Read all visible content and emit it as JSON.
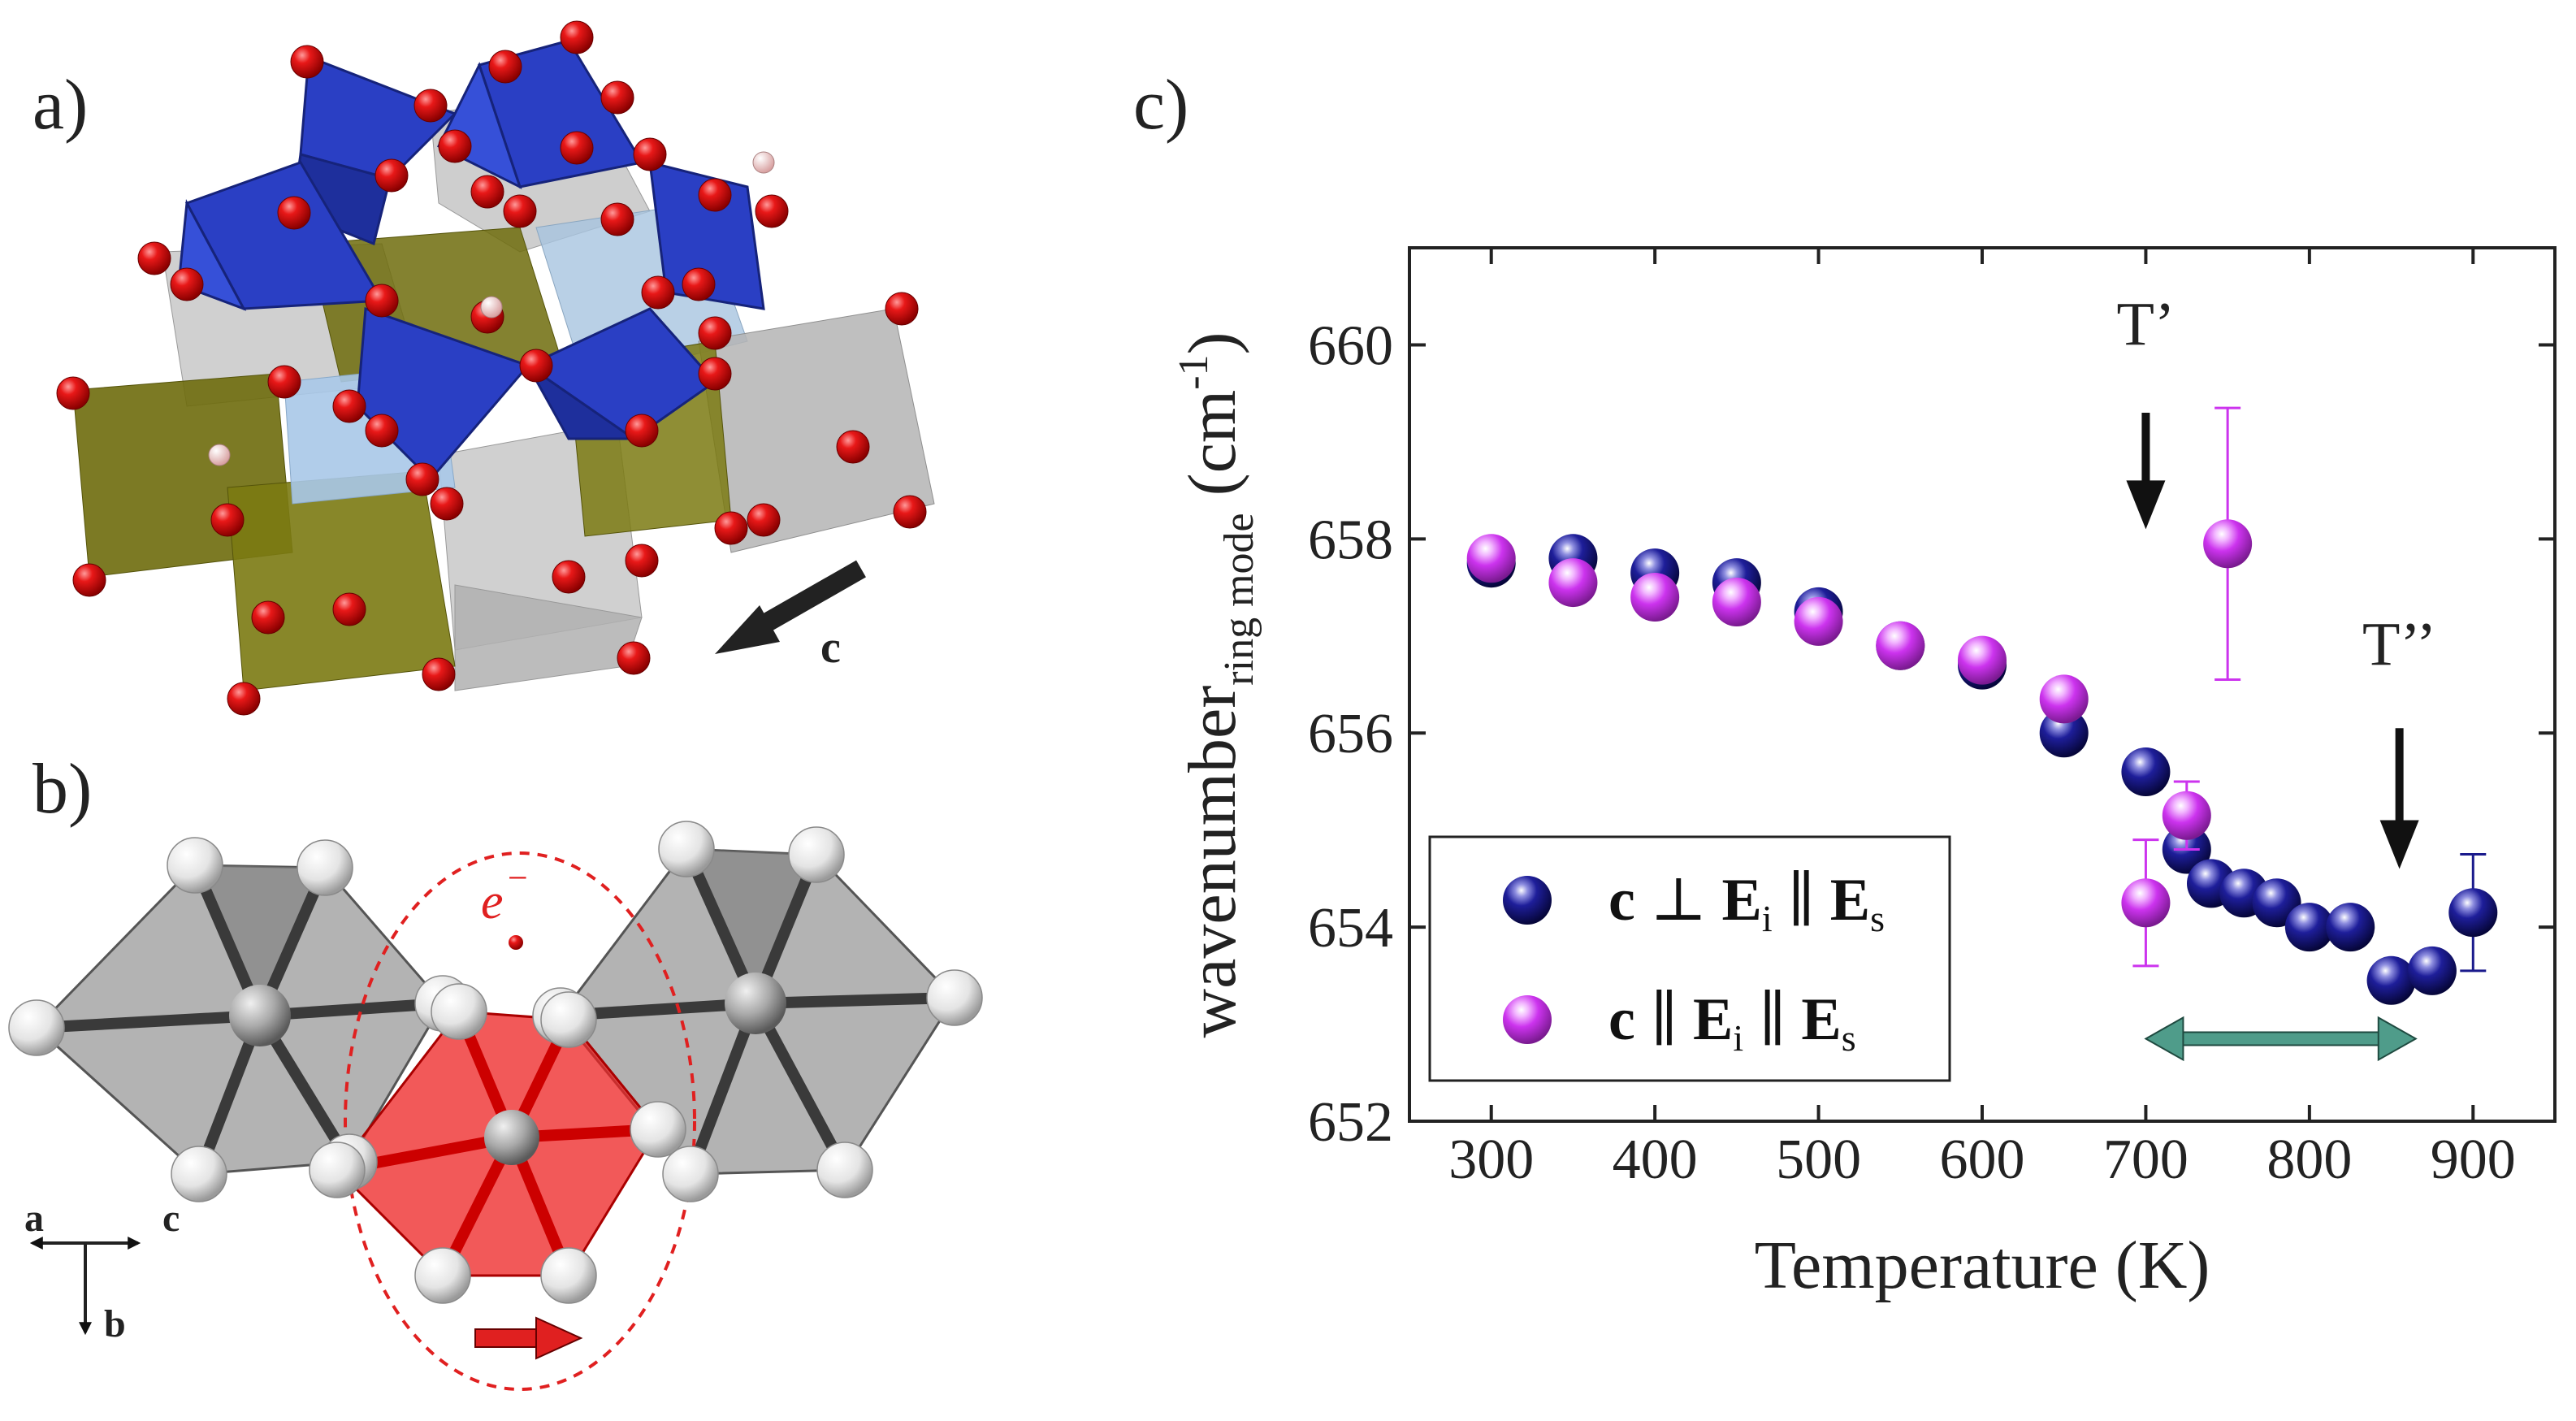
{
  "panels": {
    "a_label": "a)",
    "b_label": "b)",
    "c_label": "c)"
  },
  "panel_a": {
    "axis_label": "c"
  },
  "panel_b": {
    "electron_label": "e",
    "electron_sup": "−",
    "axis_a": "a",
    "axis_b": "b",
    "axis_c": "c"
  },
  "colors": {
    "perp_series": "#1a1a8c",
    "par_series": "#cc33ee",
    "range_arrow": "#4f9c8a",
    "tetra_blue": "#2a3fc4",
    "olive": "#7b7a12",
    "oxygen": "#e01010",
    "red_oct": "#ee2222"
  },
  "chart_data": {
    "type": "scatter",
    "title": "",
    "xlabel": "Temperature (K)",
    "ylabel": "wavenumber",
    "ylabel_sub": "ring mode",
    "ylabel_unit_open": "(cm",
    "ylabel_unit_sup": "-1",
    "ylabel_unit_close": ")",
    "xlim": [
      250,
      950
    ],
    "ylim": [
      652,
      661
    ],
    "xticks": [
      300,
      400,
      500,
      600,
      700,
      800,
      900
    ],
    "yticks": [
      652,
      654,
      656,
      658,
      660
    ],
    "series": [
      {
        "name": "c ⊥ Ei ∥ Es",
        "legend_parts": [
          "c",
          " ⊥ ",
          "E",
          "i",
          " ∥ ",
          "E",
          "s"
        ],
        "x": [
          300,
          350,
          400,
          450,
          500,
          550,
          600,
          650,
          700,
          725,
          740,
          760,
          780,
          800,
          825,
          850,
          875,
          900
        ],
        "y": [
          657.75,
          657.8,
          657.65,
          657.55,
          657.25,
          656.9,
          656.7,
          656.0,
          655.6,
          654.8,
          654.45,
          654.35,
          654.25,
          654.0,
          654.0,
          653.45,
          653.55,
          654.15
        ],
        "yerr": [
          0,
          0,
          0,
          0,
          0,
          0,
          0,
          0,
          0,
          0,
          0,
          0,
          0,
          0,
          0,
          0,
          0,
          0.6
        ]
      },
      {
        "name": "c ∥ Ei ∥ Es",
        "legend_parts": [
          "c",
          " ∥ ",
          "E",
          "i",
          " ∥ ",
          "E",
          "s"
        ],
        "x": [
          300,
          350,
          400,
          450,
          500,
          550,
          600,
          650,
          700,
          725,
          750
        ],
        "y": [
          657.8,
          657.55,
          657.4,
          657.35,
          657.15,
          656.9,
          656.75,
          656.35,
          654.25,
          655.15,
          657.95
        ],
        "yerr": [
          0,
          0,
          0,
          0,
          0,
          0,
          0,
          0,
          0.65,
          0.35,
          1.4
        ]
      }
    ],
    "annotations": [
      {
        "label": "T’",
        "x": 700,
        "y_text": 660.0,
        "arrow_from": 659.3,
        "arrow_to": 658.1
      },
      {
        "label": "T’’",
        "x": 855,
        "y_text": 656.7,
        "arrow_from": 656.05,
        "arrow_to": 654.6
      }
    ],
    "range_arrow": {
      "x_from": 700,
      "x_to": 865,
      "y": 652.85
    },
    "legend": "bottom-left"
  }
}
